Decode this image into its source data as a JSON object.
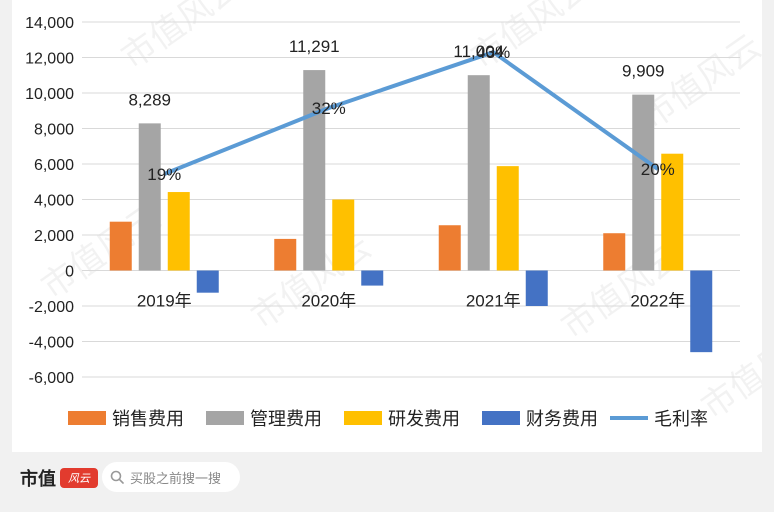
{
  "chart_data": {
    "type": "bar",
    "categories": [
      "2019年",
      "2020年",
      "2021年",
      "2022年"
    ],
    "series": [
      {
        "name": "销售费用",
        "type": "bar",
        "color": "#ED7D31",
        "values": [
          2750,
          1780,
          2550,
          2100
        ]
      },
      {
        "name": "管理费用",
        "type": "bar",
        "color": "#A5A5A5",
        "values": [
          8289,
          11291,
          11004,
          9909
        ]
      },
      {
        "name": "研发费用",
        "type": "bar",
        "color": "#FFC000",
        "values": [
          4420,
          4000,
          5880,
          6580
        ]
      },
      {
        "name": "财务费用",
        "type": "bar",
        "color": "#4472C4",
        "values": [
          -1250,
          -850,
          -2000,
          -4600
        ]
      },
      {
        "name": "毛利率",
        "type": "line",
        "color": "#5B9BD5",
        "values": [
          19,
          32,
          43,
          20
        ],
        "labels": [
          "19%",
          "32%",
          "43%",
          "20%"
        ]
      }
    ],
    "bar_labels": {
      "series": "管理费用",
      "labels": [
        "8,289",
        "11,291",
        "11,004",
        "9,909"
      ]
    },
    "y_ticks": [
      "14,000",
      "12,000",
      "10,000",
      "8,000",
      "6,000",
      "4,000",
      "2,000",
      "0",
      "-2,000",
      "-4,000",
      "-6,000"
    ],
    "y_tick_values": [
      14000,
      12000,
      10000,
      8000,
      6000,
      4000,
      2000,
      0,
      -2000,
      -4000,
      -6000
    ],
    "ylim": [
      -6000,
      14000
    ],
    "grid": true,
    "legend_position": "bottom"
  },
  "watermark": "市值风云",
  "footer": {
    "brand": "市值",
    "logo_text": "风云",
    "search_placeholder": "买股之前搜一搜"
  }
}
